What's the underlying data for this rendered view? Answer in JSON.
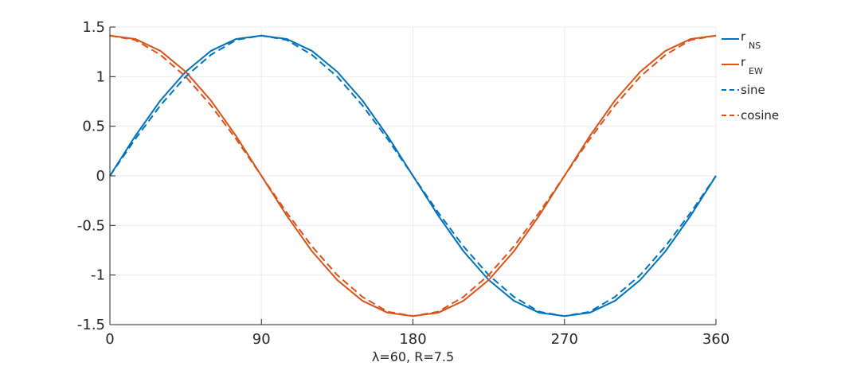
{
  "chart_data": {
    "type": "line",
    "xlabel": "λ=60, R=7.5",
    "ylabel": "",
    "title": "",
    "xlim": [
      0,
      360
    ],
    "ylim": [
      -1.5,
      1.5
    ],
    "xticks": [
      0,
      90,
      180,
      270,
      360
    ],
    "xtick_labels": [
      "0",
      "90",
      "180",
      "270",
      "360"
    ],
    "yticks": [
      -1.5,
      -1,
      -0.5,
      0,
      0.5,
      1,
      1.5
    ],
    "ytick_labels": [
      "-1.5",
      "-1",
      "-0.5",
      "0",
      "0.5",
      "1",
      "1.5"
    ],
    "grid": true,
    "legend_position": "right",
    "x": [
      0,
      15,
      30,
      45,
      60,
      75,
      90,
      105,
      120,
      135,
      150,
      165,
      180,
      195,
      210,
      225,
      240,
      255,
      270,
      285,
      300,
      315,
      330,
      345,
      360
    ],
    "series": [
      {
        "name": "r",
        "name_sub": "NS",
        "style": "solid",
        "color": "#0072BD",
        "values": [
          0,
          0.4,
          0.76,
          1.05,
          1.26,
          1.38,
          1.414,
          1.38,
          1.26,
          1.05,
          0.76,
          0.4,
          0,
          -0.4,
          -0.76,
          -1.05,
          -1.26,
          -1.38,
          -1.414,
          -1.38,
          -1.26,
          -1.05,
          -0.76,
          -0.4,
          0
        ]
      },
      {
        "name": "r",
        "name_sub": "EW",
        "style": "solid",
        "color": "#D95319",
        "values": [
          1.414,
          1.38,
          1.26,
          1.05,
          0.76,
          0.4,
          0,
          -0.4,
          -0.76,
          -1.05,
          -1.26,
          -1.38,
          -1.414,
          -1.38,
          -1.26,
          -1.05,
          -0.76,
          -0.4,
          0,
          0.4,
          0.76,
          1.05,
          1.26,
          1.38,
          1.414
        ]
      },
      {
        "name": "sine",
        "style": "dashed",
        "color": "#0072BD",
        "values": [
          0,
          0.37,
          0.71,
          1.0,
          1.22,
          1.37,
          1.414,
          1.37,
          1.22,
          1.0,
          0.71,
          0.37,
          0,
          -0.37,
          -0.71,
          -1.0,
          -1.22,
          -1.37,
          -1.414,
          -1.37,
          -1.22,
          -1.0,
          -0.71,
          -0.37,
          0
        ]
      },
      {
        "name": "cosine",
        "style": "dashed",
        "color": "#D95319",
        "values": [
          1.414,
          1.37,
          1.22,
          1.0,
          0.71,
          0.37,
          0,
          -0.37,
          -0.71,
          -1.0,
          -1.22,
          -1.37,
          -1.414,
          -1.37,
          -1.22,
          -1.0,
          -0.71,
          -0.37,
          0,
          0.37,
          0.71,
          1.0,
          1.22,
          1.37,
          1.414
        ]
      }
    ]
  }
}
